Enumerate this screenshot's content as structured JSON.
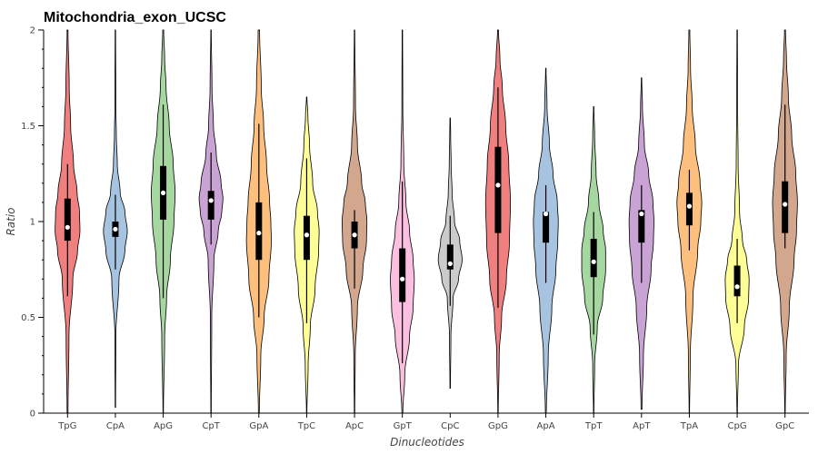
{
  "chart_data": {
    "type": "violin",
    "title": "Mitochondria_exon_UCSC",
    "xlabel": "Dinucleotides",
    "ylabel": "Ratio",
    "ylim": [
      0,
      2
    ],
    "yticks": [
      0,
      0.5,
      1,
      1.5,
      2
    ],
    "ytick_labels": [
      "0",
      "0.5",
      "1",
      "1.5",
      "2"
    ],
    "grid": false,
    "categories": [
      "TpG",
      "CpA",
      "ApG",
      "CpT",
      "GpA",
      "TpC",
      "ApC",
      "GpT",
      "CpC",
      "GpG",
      "ApA",
      "TpT",
      "ApT",
      "TpA",
      "CpG",
      "GpC"
    ],
    "colors": [
      "#f08080",
      "#a6c4e0",
      "#a6d7a0",
      "#c9a3d4",
      "#fdbf7d",
      "#fefe96",
      "#d2a78e",
      "#fbc0e0",
      "#cbcbcb",
      "#f08080",
      "#a6c4e0",
      "#a6d7a0",
      "#c9a3d4",
      "#fdbf7d",
      "#fefe96",
      "#d2a78e"
    ],
    "series": [
      {
        "category": "TpG",
        "median": 0.97,
        "q1": 0.9,
        "q3": 1.12,
        "whisker_low": 0.61,
        "whisker_high": 1.3,
        "min": 0.0,
        "max": 2.0,
        "profile_y": [
          0.0,
          0.4,
          0.7,
          0.85,
          0.95,
          1.05,
          1.15,
          1.3,
          1.5,
          1.7,
          2.0
        ],
        "profile_w": [
          0.02,
          0.06,
          0.22,
          0.42,
          0.52,
          0.5,
          0.4,
          0.25,
          0.13,
          0.07,
          0.02
        ]
      },
      {
        "category": "CpA",
        "median": 0.96,
        "q1": 0.92,
        "q3": 1.0,
        "whisker_low": 0.75,
        "whisker_high": 1.14,
        "min": 0.03,
        "max": 2.0,
        "profile_y": [
          0.03,
          0.4,
          0.7,
          0.85,
          0.95,
          1.05,
          1.15,
          1.3,
          1.45,
          1.6,
          2.0
        ],
        "profile_w": [
          0.01,
          0.02,
          0.15,
          0.4,
          0.5,
          0.4,
          0.2,
          0.08,
          0.04,
          0.02,
          0.01
        ]
      },
      {
        "category": "ApG",
        "median": 1.15,
        "q1": 1.01,
        "q3": 1.29,
        "whisker_low": 0.6,
        "whisker_high": 1.61,
        "min": 0.0,
        "max": 2.0,
        "profile_y": [
          0.0,
          0.4,
          0.6,
          0.8,
          1.0,
          1.15,
          1.3,
          1.5,
          1.7,
          1.85,
          2.0
        ],
        "profile_w": [
          0.01,
          0.06,
          0.14,
          0.3,
          0.45,
          0.5,
          0.42,
          0.25,
          0.12,
          0.06,
          0.02
        ]
      },
      {
        "category": "CpT",
        "median": 1.11,
        "q1": 1.01,
        "q3": 1.16,
        "whisker_low": 0.88,
        "whisker_high": 1.36,
        "min": 0.0,
        "max": 2.0,
        "profile_y": [
          0.0,
          0.5,
          0.8,
          0.95,
          1.05,
          1.12,
          1.2,
          1.35,
          1.5,
          1.7,
          2.0
        ],
        "profile_w": [
          0.01,
          0.03,
          0.12,
          0.3,
          0.45,
          0.5,
          0.42,
          0.22,
          0.1,
          0.04,
          0.01
        ]
      },
      {
        "category": "GpA",
        "median": 0.94,
        "q1": 0.8,
        "q3": 1.1,
        "whisker_low": 0.5,
        "whisker_high": 1.51,
        "min": 0.0,
        "max": 2.0,
        "profile_y": [
          0.0,
          0.3,
          0.5,
          0.7,
          0.9,
          1.0,
          1.1,
          1.3,
          1.5,
          1.7,
          2.0
        ],
        "profile_w": [
          0.02,
          0.08,
          0.22,
          0.42,
          0.52,
          0.5,
          0.45,
          0.32,
          0.2,
          0.1,
          0.03
        ]
      },
      {
        "category": "TpC",
        "median": 0.93,
        "q1": 0.8,
        "q3": 1.03,
        "whisker_low": 0.47,
        "whisker_high": 1.33,
        "min": 0.0,
        "max": 1.65,
        "profile_y": [
          0.0,
          0.25,
          0.45,
          0.65,
          0.85,
          0.95,
          1.05,
          1.2,
          1.4,
          1.55,
          1.65
        ],
        "profile_w": [
          0.01,
          0.06,
          0.15,
          0.35,
          0.5,
          0.52,
          0.45,
          0.25,
          0.12,
          0.05,
          0.01
        ]
      },
      {
        "category": "ApC",
        "median": 0.93,
        "q1": 0.86,
        "q3": 1.0,
        "whisker_low": 0.65,
        "whisker_high": 1.06,
        "min": 0.0,
        "max": 2.0,
        "profile_y": [
          0.0,
          0.3,
          0.55,
          0.75,
          0.9,
          1.0,
          1.1,
          1.2,
          1.4,
          1.6,
          2.0
        ],
        "profile_w": [
          0.01,
          0.03,
          0.12,
          0.35,
          0.5,
          0.52,
          0.45,
          0.3,
          0.12,
          0.04,
          0.01
        ]
      },
      {
        "category": "GpT",
        "median": 0.7,
        "q1": 0.58,
        "q3": 0.86,
        "whisker_low": 0.26,
        "whisker_high": 1.21,
        "min": 0.0,
        "max": 2.0,
        "profile_y": [
          0.0,
          0.2,
          0.4,
          0.55,
          0.7,
          0.8,
          0.95,
          1.1,
          1.3,
          1.6,
          2.0
        ],
        "profile_w": [
          0.02,
          0.1,
          0.3,
          0.45,
          0.5,
          0.45,
          0.3,
          0.15,
          0.06,
          0.02,
          0.01
        ]
      },
      {
        "category": "CpC",
        "median": 0.78,
        "q1": 0.75,
        "q3": 0.88,
        "whisker_low": 0.56,
        "whisker_high": 1.03,
        "min": 0.13,
        "max": 1.54,
        "profile_y": [
          0.13,
          0.4,
          0.6,
          0.7,
          0.8,
          0.9,
          1.0,
          1.15,
          1.3,
          1.45,
          1.54
        ],
        "profile_w": [
          0.01,
          0.03,
          0.12,
          0.35,
          0.5,
          0.4,
          0.18,
          0.08,
          0.04,
          0.02,
          0.01
        ]
      },
      {
        "category": "GpG",
        "median": 1.19,
        "q1": 0.94,
        "q3": 1.39,
        "whisker_low": 0.55,
        "whisker_high": 1.7,
        "min": 0.0,
        "max": 2.0,
        "profile_y": [
          0.0,
          0.3,
          0.5,
          0.7,
          0.9,
          1.1,
          1.3,
          1.5,
          1.7,
          1.85,
          2.0
        ],
        "profile_w": [
          0.01,
          0.05,
          0.15,
          0.35,
          0.48,
          0.52,
          0.45,
          0.32,
          0.18,
          0.08,
          0.02
        ]
      },
      {
        "category": "ApA",
        "median": 1.04,
        "q1": 0.89,
        "q3": 1.05,
        "whisker_low": 0.68,
        "whisker_high": 1.19,
        "min": 0.0,
        "max": 1.8,
        "profile_y": [
          0.0,
          0.3,
          0.55,
          0.75,
          0.9,
          1.0,
          1.1,
          1.25,
          1.4,
          1.6,
          1.8
        ],
        "profile_w": [
          0.02,
          0.1,
          0.25,
          0.42,
          0.5,
          0.52,
          0.48,
          0.3,
          0.15,
          0.05,
          0.01
        ]
      },
      {
        "category": "TpT",
        "median": 0.79,
        "q1": 0.71,
        "q3": 0.91,
        "whisker_low": 0.41,
        "whisker_high": 1.05,
        "min": 0.0,
        "max": 1.6,
        "profile_y": [
          0.0,
          0.25,
          0.45,
          0.6,
          0.75,
          0.85,
          0.95,
          1.1,
          1.25,
          1.45,
          1.6
        ],
        "profile_w": [
          0.01,
          0.04,
          0.15,
          0.38,
          0.5,
          0.5,
          0.4,
          0.22,
          0.1,
          0.04,
          0.01
        ]
      },
      {
        "category": "ApT",
        "median": 1.04,
        "q1": 0.89,
        "q3": 1.06,
        "whisker_low": 0.68,
        "whisker_high": 1.19,
        "min": 0.02,
        "max": 1.75,
        "profile_y": [
          0.02,
          0.3,
          0.55,
          0.75,
          0.9,
          1.0,
          1.1,
          1.25,
          1.4,
          1.6,
          1.75
        ],
        "profile_w": [
          0.02,
          0.08,
          0.22,
          0.4,
          0.5,
          0.52,
          0.48,
          0.3,
          0.12,
          0.04,
          0.01
        ]
      },
      {
        "category": "TpA",
        "median": 1.08,
        "q1": 0.98,
        "q3": 1.15,
        "whisker_low": 0.85,
        "whisker_high": 1.27,
        "min": 0.0,
        "max": 2.0,
        "profile_y": [
          0.0,
          0.3,
          0.6,
          0.85,
          1.0,
          1.1,
          1.2,
          1.4,
          1.6,
          1.8,
          2.0
        ],
        "profile_w": [
          0.01,
          0.04,
          0.15,
          0.35,
          0.48,
          0.52,
          0.45,
          0.25,
          0.12,
          0.05,
          0.02
        ]
      },
      {
        "category": "CpG",
        "median": 0.66,
        "q1": 0.61,
        "q3": 0.77,
        "whisker_low": 0.47,
        "whisker_high": 0.91,
        "min": 0.0,
        "max": 2.0,
        "profile_y": [
          0.0,
          0.25,
          0.45,
          0.6,
          0.7,
          0.8,
          0.9,
          1.05,
          1.3,
          1.6,
          2.0
        ],
        "profile_w": [
          0.01,
          0.05,
          0.3,
          0.48,
          0.5,
          0.4,
          0.22,
          0.1,
          0.04,
          0.02,
          0.01
        ]
      },
      {
        "category": "GpC",
        "median": 1.09,
        "q1": 0.94,
        "q3": 1.21,
        "whisker_low": 0.86,
        "whisker_high": 1.61,
        "min": 0.0,
        "max": 2.0,
        "profile_y": [
          0.0,
          0.3,
          0.55,
          0.8,
          0.95,
          1.1,
          1.25,
          1.45,
          1.65,
          1.85,
          2.0
        ],
        "profile_w": [
          0.01,
          0.05,
          0.18,
          0.38,
          0.48,
          0.52,
          0.45,
          0.28,
          0.14,
          0.06,
          0.02
        ]
      }
    ]
  }
}
